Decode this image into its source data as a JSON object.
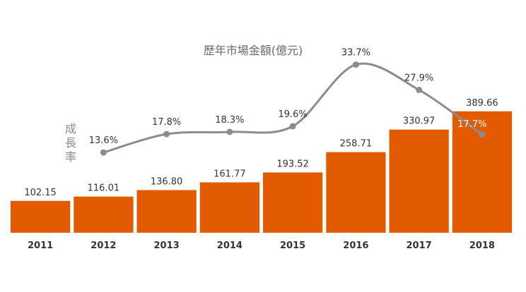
{
  "chart_data": {
    "type": "bar",
    "categories": [
      "2011",
      "2012",
      "2013",
      "2014",
      "2015",
      "2016",
      "2017",
      "2018"
    ],
    "series": [
      {
        "name": "歷年市場金額(億元)",
        "type": "bar",
        "values": [
          102.15,
          116.01,
          136.8,
          161.77,
          193.52,
          258.71,
          330.97,
          389.66
        ],
        "labels": [
          "102.15",
          "116.01",
          "136.80",
          "161.77",
          "193.52",
          "258.71",
          "330.97",
          "389.66"
        ],
        "color": "#E35B00"
      },
      {
        "name": "成長率",
        "type": "line",
        "x": [
          "2012",
          "2013",
          "2014",
          "2015",
          "2016",
          "2017",
          "2018"
        ],
        "values": [
          13.6,
          17.8,
          18.3,
          19.6,
          33.7,
          27.9,
          17.7
        ],
        "labels": [
          "13.6%",
          "17.8%",
          "18.3%",
          "19.6%",
          "33.7%",
          "27.9%",
          "17.7%"
        ],
        "color": "#8C8C8C"
      }
    ],
    "bar_title": "歷年市場金額(億元)",
    "line_title": "成長率",
    "legend": "none",
    "grid": false
  }
}
